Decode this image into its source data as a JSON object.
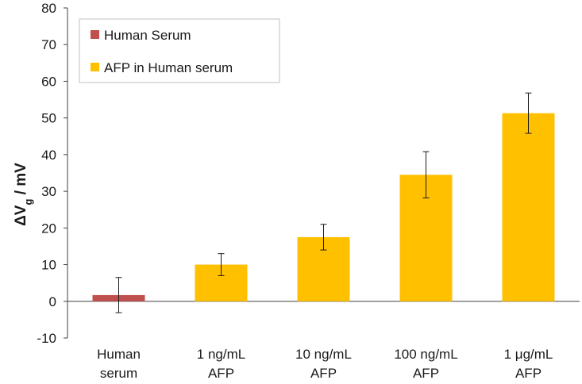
{
  "chart_data": {
    "type": "bar",
    "ylabel": {
      "prefix": "ΔV",
      "subscript": "g",
      "suffix": " / mV"
    },
    "ylim": [
      -10,
      80
    ],
    "yticks": [
      -10,
      0,
      10,
      20,
      30,
      40,
      50,
      60,
      70,
      80
    ],
    "grid": false,
    "legend_position": "top-left",
    "categories": [
      [
        "Human",
        "serum"
      ],
      [
        "1 ng/mL",
        "AFP"
      ],
      [
        "10 ng/mL",
        "AFP"
      ],
      [
        "100 ng/mL",
        "AFP"
      ],
      [
        "1 μg/mL",
        "AFP"
      ]
    ],
    "series": [
      {
        "name": "Human Serum",
        "color": "#c0504d",
        "values": [
          1.7,
          null,
          null,
          null,
          null
        ],
        "errors": [
          4.8,
          null,
          null,
          null,
          null
        ]
      },
      {
        "name": "AFP in Human serum",
        "color": "#ffc000",
        "values": [
          null,
          10,
          17.5,
          34.5,
          51.3
        ],
        "errors": [
          null,
          3,
          3.5,
          6.3,
          5.5
        ]
      }
    ]
  }
}
